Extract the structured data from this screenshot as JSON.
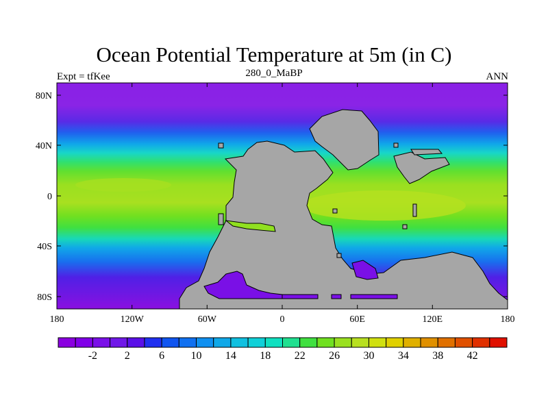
{
  "title": "Ocean Potential Temperature at 5m (in C)",
  "left_label": "Expt = tfKee",
  "center_label": "280_0_MaBP",
  "right_label": "ANN",
  "map": {
    "lon_ticks": [
      "180",
      "120W",
      "60W",
      "0",
      "60E",
      "120E",
      "180"
    ],
    "lat_ticks": [
      "80N",
      "40N",
      "0",
      "40S",
      "80S"
    ],
    "land_color": "#a6a6a6"
  },
  "colorbar": {
    "colors": [
      "#8a00e0",
      "#8000e8",
      "#7a10e8",
      "#7018e8",
      "#5a10e8",
      "#2030f0",
      "#1055f0",
      "#1070f0",
      "#1090f0",
      "#10a8e8",
      "#10c0e0",
      "#10d0d8",
      "#10e0c0",
      "#20e090",
      "#40e040",
      "#70e020",
      "#9ae020",
      "#b8e020",
      "#d0e010",
      "#e0d000",
      "#e0b000",
      "#e09000",
      "#e07000",
      "#e05000",
      "#e03000",
      "#e01000"
    ],
    "labels": [
      "-2",
      "2",
      "6",
      "10",
      "14",
      "18",
      "22",
      "26",
      "30",
      "34",
      "38",
      "42"
    ]
  }
}
